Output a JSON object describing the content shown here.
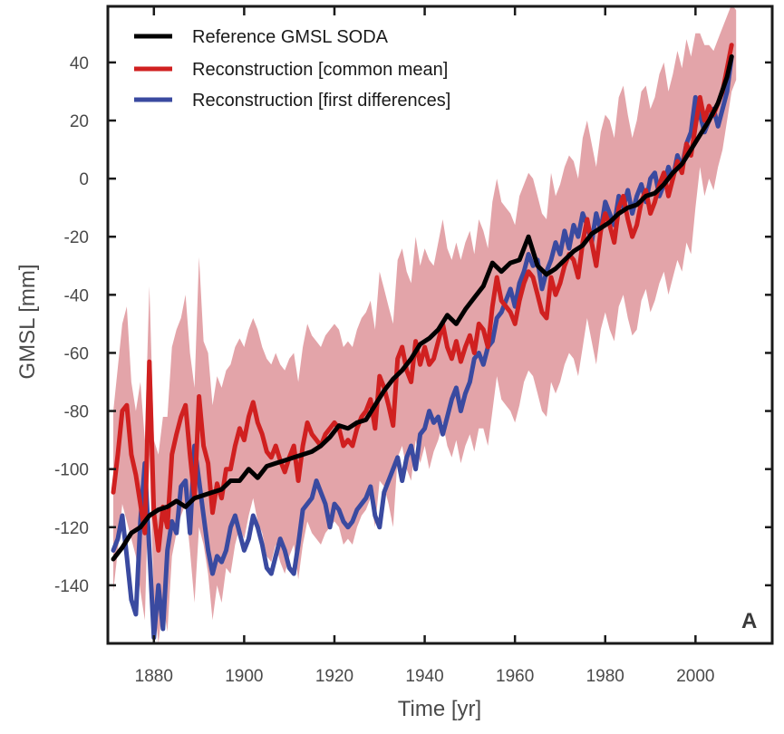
{
  "chart_data": {
    "type": "line",
    "title": "",
    "panel_label": "A",
    "xlabel": "Time [yr]",
    "ylabel": "GMSL [mm]",
    "xlim": [
      1870,
      2017
    ],
    "ylim": [
      -160,
      59
    ],
    "xticks": [
      1880,
      1900,
      1920,
      1940,
      1960,
      1980,
      2000
    ],
    "yticks": [
      40,
      20,
      0,
      -20,
      -40,
      -60,
      -80,
      -100,
      -120,
      -140
    ],
    "grid": false,
    "legend_position": "top-left",
    "colors": {
      "reference": "#000000",
      "common_mean": "#d02020",
      "first_differences": "#3a4aa0",
      "uncertainty_band": "#e09aa0"
    },
    "series": [
      {
        "name": "Reference GMSL SODA",
        "color": "#000000",
        "x": [
          1871,
          1873,
          1875,
          1877,
          1879,
          1881,
          1883,
          1885,
          1887,
          1889,
          1891,
          1893,
          1895,
          1897,
          1899,
          1901,
          1903,
          1905,
          1907,
          1909,
          1911,
          1913,
          1915,
          1917,
          1919,
          1921,
          1923,
          1925,
          1927,
          1929,
          1931,
          1933,
          1935,
          1937,
          1939,
          1941,
          1943,
          1945,
          1947,
          1949,
          1951,
          1953,
          1955,
          1957,
          1959,
          1961,
          1963,
          1965,
          1967,
          1969,
          1971,
          1973,
          1975,
          1977,
          1979,
          1981,
          1983,
          1985,
          1987,
          1989,
          1991,
          1993,
          1995,
          1997,
          1999,
          2001,
          2003,
          2005,
          2007,
          2008
        ],
        "values": [
          -131,
          -127,
          -122,
          -120,
          -116,
          -114,
          -113,
          -111,
          -113,
          -110,
          -109,
          -108,
          -107,
          -104,
          -104,
          -100,
          -103,
          -99,
          -98,
          -97,
          -96,
          -95,
          -94,
          -92,
          -89,
          -85,
          -86,
          -84,
          -83,
          -78,
          -73,
          -69,
          -66,
          -62,
          -57,
          -55,
          -52,
          -47,
          -50,
          -45,
          -41,
          -37,
          -29,
          -32,
          -29,
          -28,
          -20,
          -30,
          -33,
          -31,
          -28,
          -25,
          -23,
          -19,
          -17,
          -15,
          -12,
          -10,
          -9,
          -6,
          -5,
          -2,
          2,
          5,
          10,
          15,
          20,
          26,
          35,
          42
        ]
      },
      {
        "name": "Reconstruction [common mean]",
        "color": "#d02020",
        "x": [
          1871,
          1872,
          1873,
          1874,
          1875,
          1876,
          1877,
          1878,
          1879,
          1880,
          1881,
          1882,
          1883,
          1884,
          1885,
          1886,
          1887,
          1888,
          1889,
          1890,
          1891,
          1892,
          1893,
          1894,
          1895,
          1896,
          1897,
          1898,
          1899,
          1900,
          1901,
          1902,
          1903,
          1904,
          1905,
          1906,
          1907,
          1908,
          1909,
          1910,
          1911,
          1912,
          1913,
          1914,
          1915,
          1916,
          1917,
          1918,
          1919,
          1920,
          1921,
          1922,
          1923,
          1924,
          1925,
          1926,
          1927,
          1928,
          1929,
          1930,
          1931,
          1932,
          1933,
          1934,
          1935,
          1936,
          1937,
          1938,
          1939,
          1940,
          1941,
          1942,
          1943,
          1944,
          1945,
          1946,
          1947,
          1948,
          1949,
          1950,
          1951,
          1952,
          1953,
          1954,
          1955,
          1956,
          1957,
          1958,
          1959,
          1960,
          1961,
          1962,
          1963,
          1964,
          1965,
          1966,
          1967,
          1968,
          1969,
          1970,
          1971,
          1972,
          1973,
          1974,
          1975,
          1976,
          1977,
          1978,
          1979,
          1980,
          1981,
          1982,
          1983,
          1984,
          1985,
          1986,
          1987,
          1988,
          1989,
          1990,
          1991,
          1992,
          1993,
          1994,
          1995,
          1996,
          1997,
          1998,
          1999,
          2000,
          2001,
          2002,
          2003,
          2004,
          2005,
          2006,
          2007,
          2008
        ],
        "values": [
          -108,
          -95,
          -80,
          -78,
          -95,
          -102,
          -112,
          -122,
          -63,
          -115,
          -128,
          -113,
          -120,
          -95,
          -88,
          -82,
          -78,
          -95,
          -110,
          -75,
          -92,
          -98,
          -115,
          -105,
          -110,
          -100,
          -100,
          -92,
          -86,
          -90,
          -82,
          -77,
          -84,
          -88,
          -94,
          -96,
          -92,
          -97,
          -101,
          -96,
          -92,
          -104,
          -92,
          -84,
          -88,
          -90,
          -92,
          -88,
          -86,
          -84,
          -86,
          -92,
          -90,
          -92,
          -86,
          -82,
          -80,
          -76,
          -86,
          -68,
          -72,
          -78,
          -85,
          -62,
          -58,
          -66,
          -70,
          -56,
          -64,
          -58,
          -64,
          -62,
          -56,
          -50,
          -58,
          -62,
          -56,
          -63,
          -58,
          -54,
          -60,
          -50,
          -52,
          -58,
          -44,
          -34,
          -42,
          -44,
          -46,
          -50,
          -42,
          -36,
          -32,
          -34,
          -40,
          -46,
          -48,
          -34,
          -40,
          -36,
          -30,
          -26,
          -28,
          -34,
          -22,
          -14,
          -22,
          -30,
          -18,
          -12,
          -16,
          -22,
          -10,
          -6,
          -14,
          -20,
          -16,
          -8,
          -4,
          -12,
          -8,
          -2,
          2,
          -6,
          0,
          6,
          2,
          12,
          8,
          18,
          28,
          20,
          25,
          22,
          26,
          30,
          38,
          46
        ]
      },
      {
        "name": "Reconstruction [first differences]",
        "color": "#3a4aa0",
        "x": [
          1871,
          1872,
          1873,
          1874,
          1875,
          1876,
          1877,
          1878,
          1879,
          1880,
          1881,
          1882,
          1883,
          1884,
          1885,
          1886,
          1887,
          1888,
          1889,
          1890,
          1891,
          1892,
          1893,
          1894,
          1895,
          1896,
          1897,
          1898,
          1899,
          1900,
          1901,
          1902,
          1903,
          1904,
          1905,
          1906,
          1907,
          1908,
          1909,
          1910,
          1911,
          1912,
          1913,
          1914,
          1915,
          1916,
          1917,
          1918,
          1919,
          1920,
          1921,
          1922,
          1923,
          1924,
          1925,
          1926,
          1927,
          1928,
          1929,
          1930,
          1931,
          1932,
          1933,
          1934,
          1935,
          1936,
          1937,
          1938,
          1939,
          1940,
          1941,
          1942,
          1943,
          1944,
          1945,
          1946,
          1947,
          1948,
          1949,
          1950,
          1951,
          1952,
          1953,
          1954,
          1955,
          1956,
          1957,
          1958,
          1959,
          1960,
          1961,
          1962,
          1963,
          1964,
          1965,
          1966,
          1967,
          1968,
          1969,
          1970,
          1971,
          1972,
          1973,
          1974,
          1975,
          1976,
          1977,
          1978,
          1979,
          1980,
          1981,
          1982,
          1983,
          1984,
          1985,
          1986,
          1987,
          1988,
          1989,
          1990,
          1991,
          1992,
          1993,
          1994,
          1995,
          1996,
          1997,
          1998,
          1999,
          2000,
          2001,
          2002,
          2003,
          2004,
          2005,
          2006,
          2007,
          2008
        ],
        "values": [
          -128,
          -124,
          -116,
          -130,
          -145,
          -150,
          -118,
          -98,
          -128,
          -158,
          -140,
          -155,
          -128,
          -118,
          -122,
          -106,
          -104,
          -122,
          -92,
          -104,
          -116,
          -128,
          -136,
          -130,
          -132,
          -128,
          -120,
          -116,
          -122,
          -128,
          -124,
          -116,
          -120,
          -126,
          -134,
          -136,
          -130,
          -124,
          -128,
          -134,
          -136,
          -126,
          -114,
          -112,
          -110,
          -104,
          -108,
          -112,
          -120,
          -112,
          -114,
          -118,
          -120,
          -118,
          -114,
          -112,
          -110,
          -106,
          -116,
          -120,
          -108,
          -104,
          -100,
          -96,
          -104,
          -96,
          -92,
          -100,
          -88,
          -86,
          -80,
          -84,
          -82,
          -88,
          -82,
          -76,
          -72,
          -80,
          -74,
          -70,
          -62,
          -60,
          -64,
          -58,
          -56,
          -48,
          -46,
          -42,
          -38,
          -44,
          -36,
          -32,
          -26,
          -30,
          -28,
          -38,
          -32,
          -28,
          -22,
          -26,
          -18,
          -24,
          -16,
          -20,
          -12,
          -16,
          -22,
          -12,
          -18,
          -8,
          -12,
          -16,
          -6,
          -10,
          -4,
          -12,
          -6,
          -2,
          -8,
          0,
          2,
          -6,
          -2,
          4,
          0,
          8,
          4,
          12,
          16,
          28,
          22,
          16,
          20,
          24,
          18,
          24,
          30,
          42
        ]
      }
    ],
    "band": {
      "name": "Reconstruction [common mean] uncertainty",
      "color": "#e09aa0",
      "x": [
        1871,
        1872,
        1873,
        1874,
        1875,
        1876,
        1877,
        1878,
        1879,
        1880,
        1881,
        1882,
        1883,
        1884,
        1885,
        1886,
        1887,
        1888,
        1889,
        1890,
        1891,
        1892,
        1893,
        1894,
        1895,
        1896,
        1897,
        1898,
        1899,
        1900,
        1901,
        1902,
        1903,
        1904,
        1905,
        1906,
        1907,
        1908,
        1909,
        1910,
        1911,
        1912,
        1913,
        1914,
        1915,
        1916,
        1917,
        1918,
        1919,
        1920,
        1921,
        1922,
        1923,
        1924,
        1925,
        1926,
        1927,
        1928,
        1929,
        1930,
        1931,
        1932,
        1933,
        1934,
        1935,
        1936,
        1937,
        1938,
        1939,
        1940,
        1941,
        1942,
        1943,
        1944,
        1945,
        1946,
        1947,
        1948,
        1949,
        1950,
        1951,
        1952,
        1953,
        1954,
        1955,
        1956,
        1957,
        1958,
        1959,
        1960,
        1961,
        1962,
        1963,
        1964,
        1965,
        1966,
        1967,
        1968,
        1969,
        1970,
        1971,
        1972,
        1973,
        1974,
        1975,
        1976,
        1977,
        1978,
        1979,
        1980,
        1981,
        1982,
        1983,
        1984,
        1985,
        1986,
        1987,
        1988,
        1989,
        1990,
        1991,
        1992,
        1993,
        1994,
        1995,
        1996,
        1997,
        1998,
        1999,
        2000,
        2001,
        2002,
        2003,
        2004,
        2005,
        2006,
        2007,
        2008,
        2009
      ],
      "upper": [
        -80,
        -65,
        -50,
        -44,
        -70,
        -80,
        -70,
        -90,
        -37,
        -90,
        -95,
        -82,
        -82,
        -58,
        -52,
        -48,
        -40,
        -60,
        -72,
        -27,
        -56,
        -60,
        -78,
        -68,
        -72,
        -66,
        -64,
        -58,
        -55,
        -58,
        -52,
        -48,
        -52,
        -58,
        -62,
        -64,
        -60,
        -64,
        -66,
        -62,
        -60,
        -70,
        -58,
        -50,
        -54,
        -56,
        -58,
        -54,
        -52,
        -50,
        -52,
        -58,
        -56,
        -58,
        -52,
        -48,
        -46,
        -42,
        -52,
        -32,
        -38,
        -44,
        -50,
        -28,
        -24,
        -32,
        -36,
        -20,
        -30,
        -24,
        -28,
        -30,
        -22,
        -14,
        -24,
        -28,
        -22,
        -28,
        -22,
        -18,
        -26,
        -14,
        -18,
        -24,
        -8,
        0,
        -8,
        -10,
        -12,
        -16,
        -6,
        -2,
        2,
        0,
        -6,
        -12,
        -14,
        2,
        -6,
        -2,
        4,
        8,
        6,
        0,
        14,
        20,
        12,
        4,
        16,
        22,
        20,
        14,
        28,
        32,
        22,
        14,
        20,
        30,
        32,
        24,
        28,
        36,
        40,
        30,
        36,
        44,
        38,
        48,
        42,
        50,
        50,
        46,
        46,
        44,
        48,
        52,
        56,
        60,
        58
      ],
      "lower": [
        -142,
        -128,
        -112,
        -118,
        -124,
        -130,
        -142,
        -152,
        -95,
        -145,
        -160,
        -146,
        -156,
        -130,
        -122,
        -116,
        -112,
        -128,
        -146,
        -120,
        -126,
        -136,
        -152,
        -140,
        -146,
        -134,
        -136,
        -126,
        -120,
        -124,
        -116,
        -110,
        -118,
        -122,
        -130,
        -132,
        -126,
        -132,
        -136,
        -130,
        -126,
        -138,
        -126,
        -118,
        -122,
        -124,
        -126,
        -122,
        -120,
        -118,
        -120,
        -126,
        -124,
        -126,
        -120,
        -116,
        -114,
        -110,
        -120,
        -104,
        -106,
        -112,
        -120,
        -96,
        -92,
        -100,
        -104,
        -90,
        -98,
        -92,
        -100,
        -94,
        -90,
        -84,
        -92,
        -96,
        -90,
        -98,
        -92,
        -88,
        -94,
        -86,
        -86,
        -92,
        -80,
        -68,
        -76,
        -78,
        -80,
        -84,
        -78,
        -70,
        -66,
        -68,
        -74,
        -80,
        -82,
        -70,
        -74,
        -70,
        -64,
        -60,
        -62,
        -68,
        -58,
        -48,
        -56,
        -64,
        -52,
        -46,
        -52,
        -56,
        -44,
        -40,
        -48,
        -54,
        -52,
        -42,
        -38,
        -46,
        -42,
        -36,
        -32,
        -40,
        -34,
        -28,
        -32,
        -22,
        -26,
        -10,
        4,
        -6,
        0,
        -4,
        4,
        10,
        20,
        30,
        34
      ]
    }
  }
}
